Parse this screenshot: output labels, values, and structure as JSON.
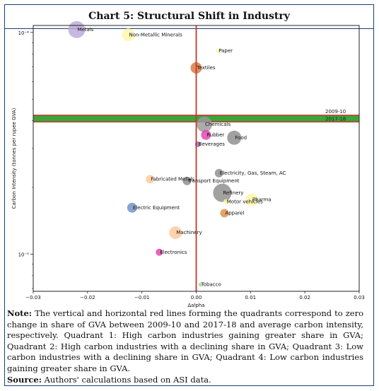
{
  "title": "Chart 5: Structural Shift in Industry",
  "note_label": "Note:",
  "note_text": "The vertical and horizontal red lines forming the quadrants correspond to zero change in share of GVA between 2009-10 and 2017-18 and average carbon intensity, respectively. Quadrant 1: High carbon industries gaining greater share in GVA; Quadrant 2: High carbon industries with a declining share in GVA; Quadrant 3: Low carbon industries with a declining share in GVA; Quadrant 4: Low carbon industries gaining greater share in GVA.",
  "source_label": "Source:",
  "source_text": "Authors' calculations based on ASI data.",
  "chart_data": {
    "type": "scatter",
    "xlabel": "Δalpha",
    "ylabel": "Carbon Intensity (tonnes per rupee GVA)",
    "xlim": [
      -0.03,
      0.03
    ],
    "y_scale": "log",
    "ylim": [
      6.8e-06,
      0.0001075
    ],
    "x_ticks": [
      "−0.03",
      "−0.02",
      "−0.01",
      "0.00",
      "0.01",
      "0.02",
      "0.03"
    ],
    "y_ticks": [
      {
        "value": 1e-05,
        "label": "10⁻⁵"
      },
      {
        "value": 0.0001,
        "label": "10⁻⁴"
      }
    ],
    "reference_lines": {
      "vertical_x": 0,
      "horizontal_2009_10": 4.23e-05,
      "horizontal_2017_18": 3.95e-05,
      "labels": [
        "2009-10",
        "2017-18"
      ],
      "band_color": "#3aa63a",
      "line_color": "#c0392b"
    },
    "points": [
      {
        "name": "Metals",
        "x": -0.022,
        "y": 0.000103,
        "size": 12,
        "color": "#b9a8d8"
      },
      {
        "name": "Non-Metallic Minerals",
        "x": -0.0125,
        "y": 9.75e-05,
        "size": 9,
        "color": "#fff6a8"
      },
      {
        "name": "Paper",
        "x": 0.004,
        "y": 8.25e-05,
        "size": 3,
        "color": "#fff6a8"
      },
      {
        "name": "Textiles",
        "x": 0.0,
        "y": 6.92e-05,
        "size": 8,
        "color": "#d9773a"
      },
      {
        "name": "Chemicals",
        "x": 0.0015,
        "y": 3.85e-05,
        "size": 11,
        "color": "#9a9a9a"
      },
      {
        "name": "Rubber",
        "x": 0.0018,
        "y": 3.45e-05,
        "size": 7,
        "color": "#e33fb0"
      },
      {
        "name": "Food",
        "x": 0.007,
        "y": 3.35e-05,
        "size": 10,
        "color": "#8c8c8c"
      },
      {
        "name": "Beverages",
        "x": 0.0003,
        "y": 3.13e-05,
        "size": 4,
        "color": "#a06dbf"
      },
      {
        "name": "Electricity, Gas, Steam, AC",
        "x": 0.0042,
        "y": 2.32e-05,
        "size": 6,
        "color": "#8c8c8c"
      },
      {
        "name": "Fabricated Metals",
        "x": -0.0085,
        "y": 2.18e-05,
        "size": 6,
        "color": "#ffc89a"
      },
      {
        "name": "Transport Equipment",
        "x": -0.0017,
        "y": 2.14e-05,
        "size": 6,
        "color": "#8c8c8c"
      },
      {
        "name": "Refinery",
        "x": 0.0048,
        "y": 1.89e-05,
        "size": 13,
        "color": "#8c8c8c"
      },
      {
        "name": "Pharma",
        "x": 0.0102,
        "y": 1.76e-05,
        "size": 9,
        "color": "#fff6a8"
      },
      {
        "name": "Motor vehicles",
        "x": 0.0055,
        "y": 1.72e-05,
        "size": 4,
        "color": "#fff6a8"
      },
      {
        "name": "Electric Equipment",
        "x": -0.0118,
        "y": 1.62e-05,
        "size": 7,
        "color": "#6f8fc7"
      },
      {
        "name": "Apparel",
        "x": 0.0052,
        "y": 1.53e-05,
        "size": 6,
        "color": "#d9904a"
      },
      {
        "name": "Machinery",
        "x": -0.0038,
        "y": 1.25e-05,
        "size": 9,
        "color": "#ffc89a"
      },
      {
        "name": "Electronics",
        "x": -0.0068,
        "y": 1.02e-05,
        "size": 5,
        "color": "#e33fb0"
      },
      {
        "name": "Tobacco",
        "x": 0.0008,
        "y": 7.3e-06,
        "size": 3,
        "color": "#a8d8a0"
      }
    ]
  }
}
